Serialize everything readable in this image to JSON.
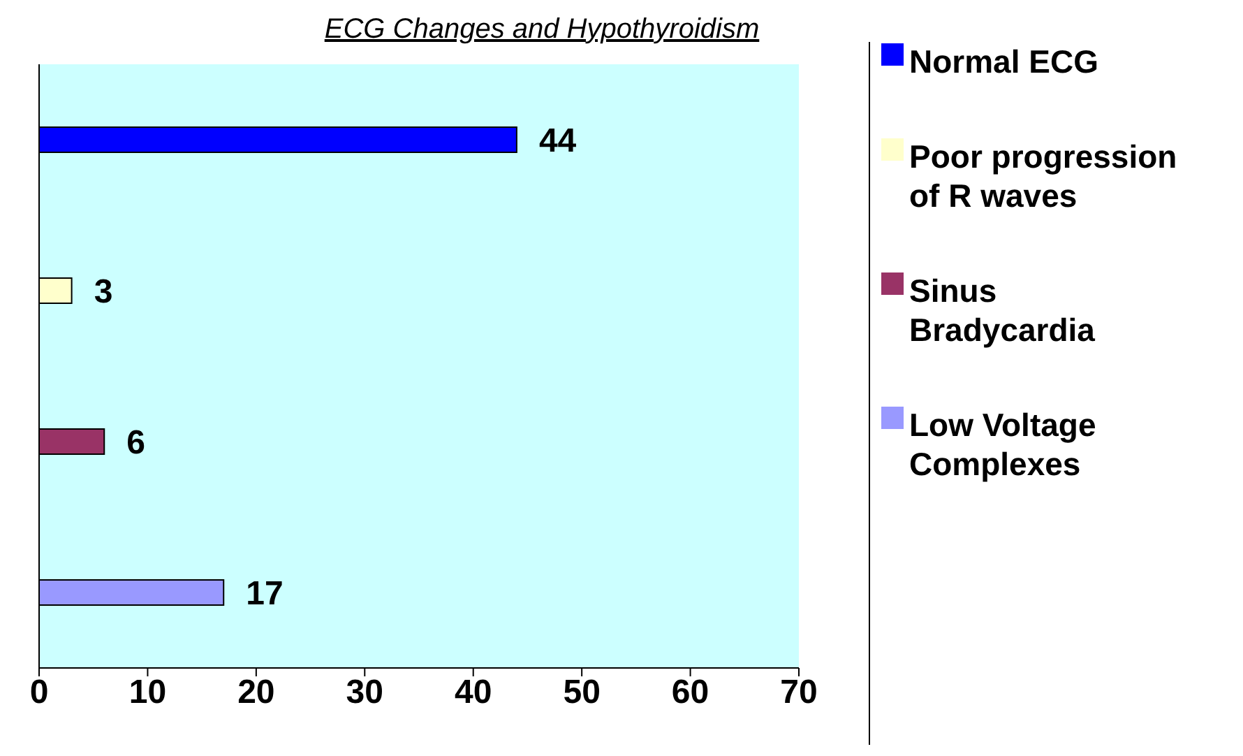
{
  "chart_data": {
    "type": "bar",
    "orientation": "horizontal",
    "title": "ECG Changes and Hypothyroidism",
    "categories": [
      null,
      null,
      null,
      null
    ],
    "series": [
      {
        "name": "Normal ECG",
        "color": "#0000ff",
        "values": [
          44,
          null,
          null,
          null
        ]
      },
      {
        "name": "Poor progression of R waves",
        "color": "#ffffcc",
        "values": [
          null,
          3,
          null,
          null
        ]
      },
      {
        "name": "Sinus Bradycardia",
        "color": "#993366",
        "values": [
          null,
          null,
          6,
          null
        ]
      },
      {
        "name": "Low Voltage Complexes",
        "color": "#9999ff",
        "values": [
          null,
          null,
          null,
          17
        ]
      }
    ],
    "xlim": [
      0,
      70
    ],
    "xticks": [
      0,
      10,
      20,
      30,
      40,
      50,
      60,
      70
    ],
    "data_labels": true,
    "legend": "right",
    "tick_labels": "x"
  }
}
